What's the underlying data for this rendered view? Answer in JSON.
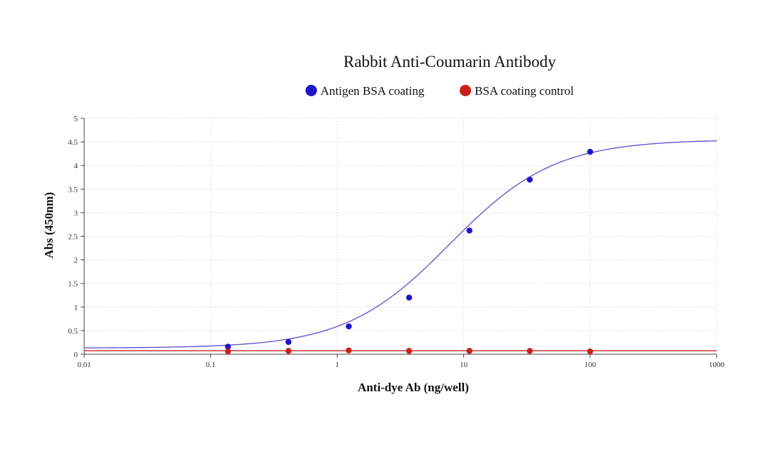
{
  "chart_data": {
    "type": "scatter",
    "title": "Rabbit Anti-Coumarin Antibody",
    "xlabel": "Anti-dye Ab (ng/well)",
    "ylabel": "Abs (450nm)",
    "x_scale": "log",
    "xlim": [
      0.01,
      1000
    ],
    "ylim": [
      0,
      5
    ],
    "x_ticks": [
      "0.01",
      "0.1",
      "1",
      "10",
      "100",
      "1000"
    ],
    "y_ticks": [
      "0",
      "0.5",
      "1",
      "1.5",
      "2",
      "2.5",
      "3",
      "3.5",
      "4",
      "4.5",
      "5"
    ],
    "grid": true,
    "legend_position": "top",
    "series": [
      {
        "name": "Antigen BSA coating",
        "color": "#2014c8",
        "curve_color": "#5b4fcf",
        "x": [
          0.137,
          0.412,
          1.235,
          3.704,
          11.11,
          33.33,
          100
        ],
        "y": [
          0.16,
          0.26,
          0.59,
          1.2,
          2.62,
          3.7,
          4.29
        ],
        "fit": {
          "model": "4PL",
          "bottom": 0.13,
          "top": 4.55,
          "ec50": 7.8,
          "hill": 1.05
        }
      },
      {
        "name": "BSA coating control",
        "color": "#cc1f1f",
        "curve_color": "#cc2222",
        "x": [
          0.137,
          0.412,
          1.235,
          3.704,
          11.11,
          33.33,
          100
        ],
        "y": [
          0.06,
          0.07,
          0.08,
          0.07,
          0.07,
          0.07,
          0.06
        ],
        "fit": {
          "model": "constant",
          "value": 0.075
        }
      }
    ]
  }
}
